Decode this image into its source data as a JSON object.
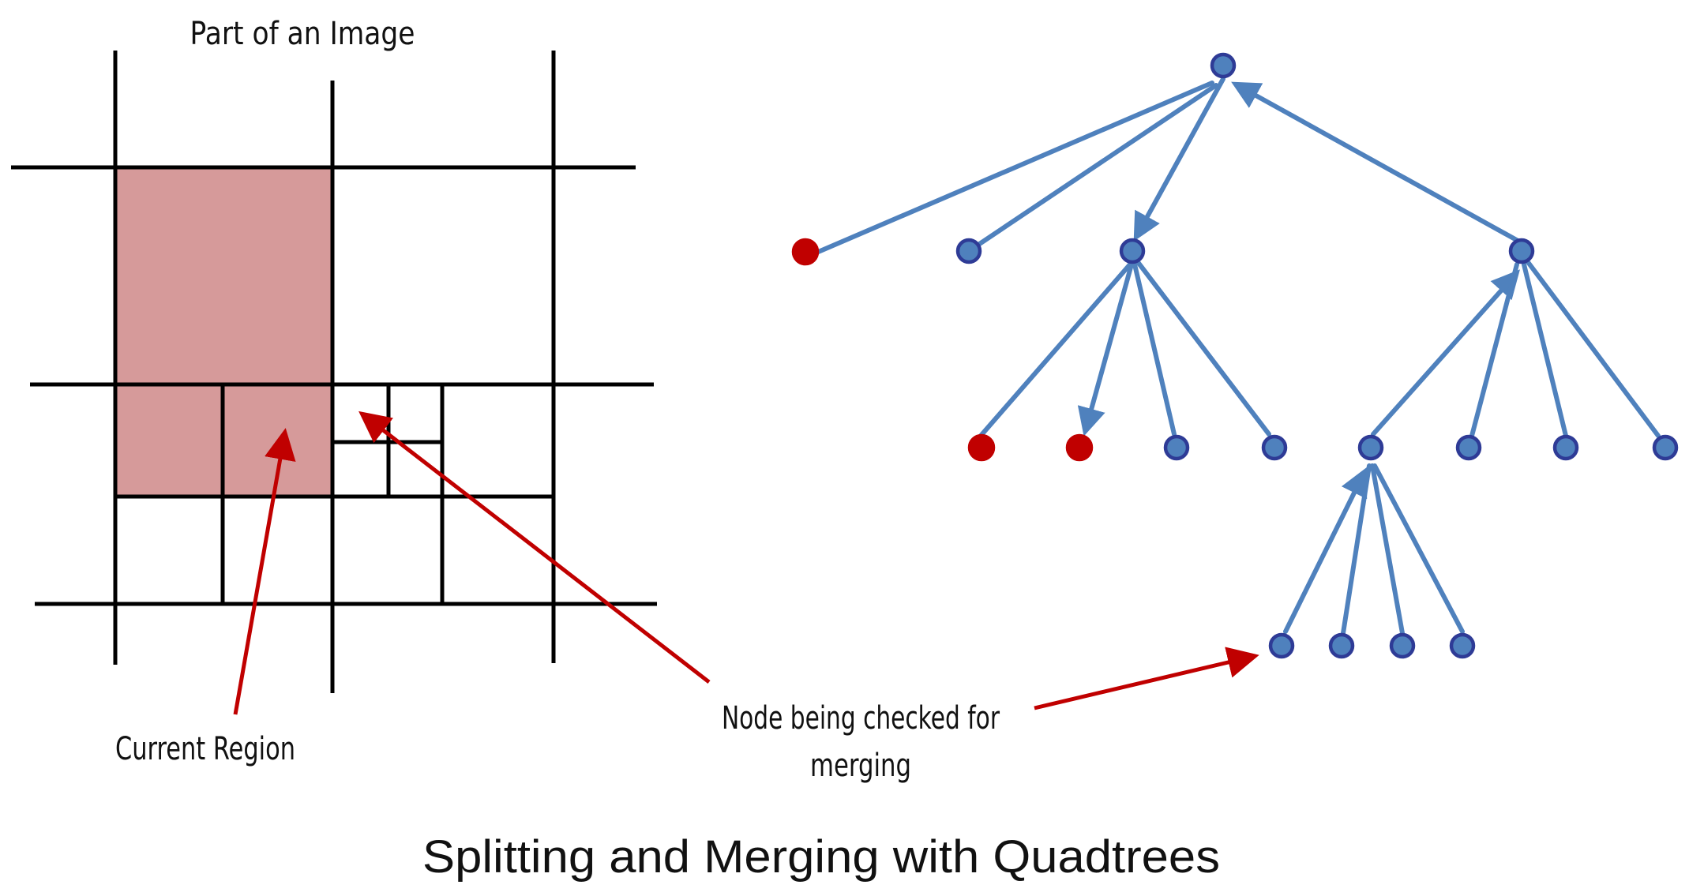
{
  "left_panel": {
    "title": "Part of an Image",
    "current_region_label": "Current Region"
  },
  "annotation": {
    "line1": "Node being checked for",
    "line2": "merging"
  },
  "caption": "Splitting and Merging with Quadtrees",
  "colors": {
    "grid_line": "#000000",
    "region_fill": "#d69a9a",
    "arrow_red": "#c00000",
    "edge_blue": "#4f81bd",
    "node_blue_fill": "#4f81bd",
    "node_blue_stroke": "#2e3b96",
    "node_red_fill": "#c00000"
  }
}
